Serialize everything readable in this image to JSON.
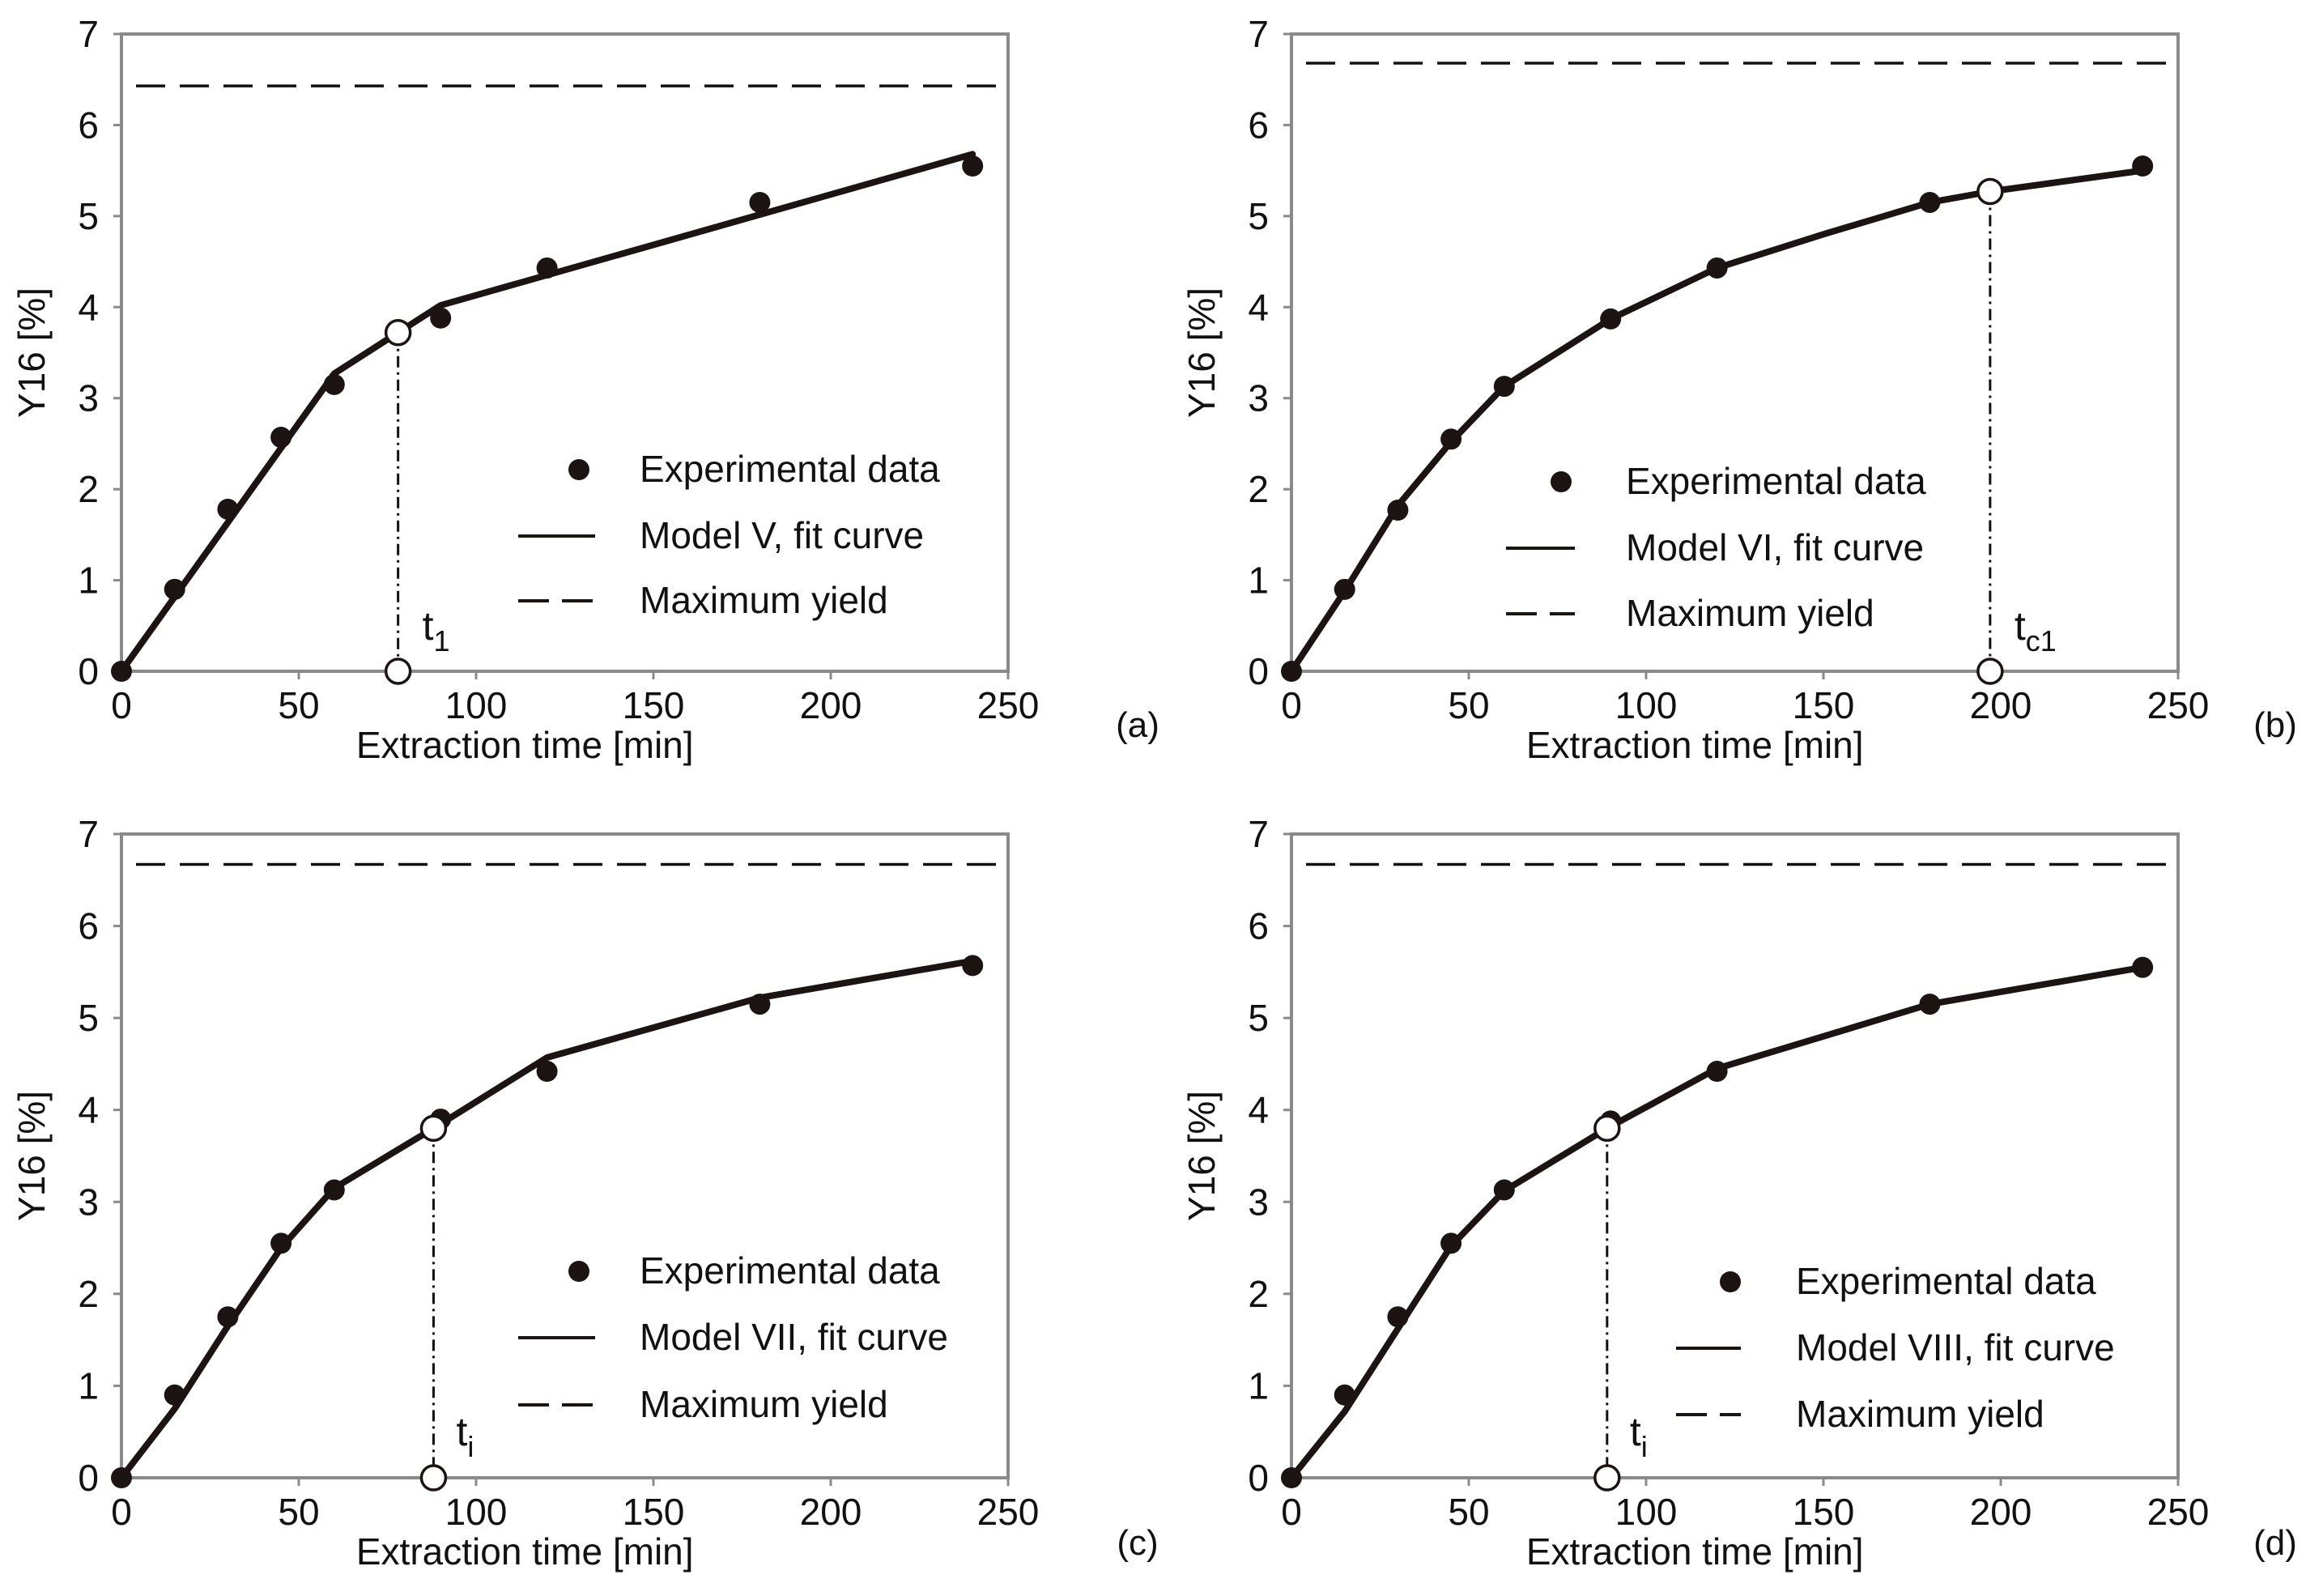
{
  "chart_data": [
    {
      "type": "line",
      "panel": "(a)",
      "xlabel": "Extraction time [min]",
      "ylabel": "Y16 [%]",
      "xlim": [
        0,
        250
      ],
      "ylim": [
        0,
        7
      ],
      "xticks": [
        0,
        50,
        100,
        150,
        200,
        250
      ],
      "yticks": [
        0,
        1,
        2,
        3,
        4,
        5,
        6,
        7
      ],
      "experimental": {
        "x": [
          0,
          15,
          30,
          45,
          60,
          90,
          120,
          180,
          240
        ],
        "y": [
          0,
          0.9,
          1.78,
          2.57,
          3.15,
          3.88,
          4.43,
          5.15,
          5.55
        ]
      },
      "fit": {
        "x": [
          0,
          60,
          78,
          90,
          240
        ],
        "y": [
          0,
          3.27,
          3.72,
          4.02,
          5.68
        ]
      },
      "max_yield": 6.43,
      "marker": {
        "x": 78,
        "y": 3.72,
        "label_main": "t",
        "label_sub": "1"
      },
      "legend": {
        "experimental": "Experimental data",
        "fit": "Model V, fit curve",
        "max": "Maximum yield"
      }
    },
    {
      "type": "line",
      "panel": "(b)",
      "xlabel": "Extraction time [min]",
      "ylabel": "Y16 [%]",
      "xlim": [
        0,
        250
      ],
      "ylim": [
        0,
        7
      ],
      "xticks": [
        0,
        50,
        100,
        150,
        200,
        250
      ],
      "yticks": [
        0,
        1,
        2,
        3,
        4,
        5,
        6,
        7
      ],
      "experimental": {
        "x": [
          0,
          15,
          30,
          45,
          60,
          90,
          120,
          180,
          240
        ],
        "y": [
          0,
          0.9,
          1.77,
          2.55,
          3.13,
          3.87,
          4.43,
          5.15,
          5.55
        ]
      },
      "fit": {
        "x": [
          0,
          15,
          30,
          45,
          60,
          90,
          120,
          150,
          180,
          197,
          240
        ],
        "y": [
          0,
          0.88,
          1.82,
          2.52,
          3.13,
          3.87,
          4.43,
          4.8,
          5.15,
          5.27,
          5.5
        ]
      },
      "max_yield": 6.68,
      "marker": {
        "x": 197,
        "y": 5.27,
        "label_main": "t",
        "label_sub": "c1"
      },
      "legend": {
        "experimental": "Experimental data",
        "fit": "Model VI, fit curve",
        "max": "Maximum yield"
      }
    },
    {
      "type": "line",
      "panel": "(c)",
      "xlabel": "Extraction time [min]",
      "ylabel": "Y16 [%]",
      "xlim": [
        0,
        250
      ],
      "ylim": [
        0,
        7
      ],
      "xticks": [
        0,
        50,
        100,
        150,
        200,
        250
      ],
      "yticks": [
        0,
        1,
        2,
        3,
        4,
        5,
        6,
        7
      ],
      "experimental": {
        "x": [
          0,
          15,
          30,
          45,
          60,
          90,
          120,
          180,
          240
        ],
        "y": [
          0,
          0.9,
          1.75,
          2.55,
          3.13,
          3.9,
          4.42,
          5.15,
          5.57
        ]
      },
      "fit": {
        "x": [
          0,
          15,
          30,
          45,
          60,
          88,
          120,
          180,
          240
        ],
        "y": [
          0,
          0.75,
          1.65,
          2.5,
          3.15,
          3.8,
          4.57,
          5.22,
          5.62
        ]
      },
      "max_yield": 6.67,
      "marker": {
        "x": 88,
        "y": 3.8,
        "label_main": "t",
        "label_sub": "i"
      },
      "legend": {
        "experimental": "Experimental data",
        "fit": "Model VII, fit curve",
        "max": "Maximum yield"
      }
    },
    {
      "type": "line",
      "panel": "(d)",
      "xlabel": "Extraction time [min]",
      "ylabel": "Y16 [%]",
      "xlim": [
        0,
        250
      ],
      "ylim": [
        0,
        7
      ],
      "xticks": [
        0,
        50,
        100,
        150,
        200,
        250
      ],
      "yticks": [
        0,
        1,
        2,
        3,
        4,
        5,
        6,
        7
      ],
      "experimental": {
        "x": [
          0,
          15,
          30,
          45,
          60,
          90,
          120,
          180,
          240
        ],
        "y": [
          0,
          0.9,
          1.75,
          2.55,
          3.13,
          3.88,
          4.42,
          5.15,
          5.55
        ]
      },
      "fit": {
        "x": [
          0,
          15,
          30,
          45,
          60,
          89,
          120,
          180,
          240
        ],
        "y": [
          0,
          0.72,
          1.62,
          2.52,
          3.12,
          3.8,
          4.45,
          5.15,
          5.55
        ]
      },
      "max_yield": 6.67,
      "marker": {
        "x": 89,
        "y": 3.8,
        "label_main": "t",
        "label_sub": "i"
      },
      "legend": {
        "experimental": "Experimental data",
        "fit": "Model VIII, fit curve",
        "max": "Maximum yield"
      }
    }
  ]
}
